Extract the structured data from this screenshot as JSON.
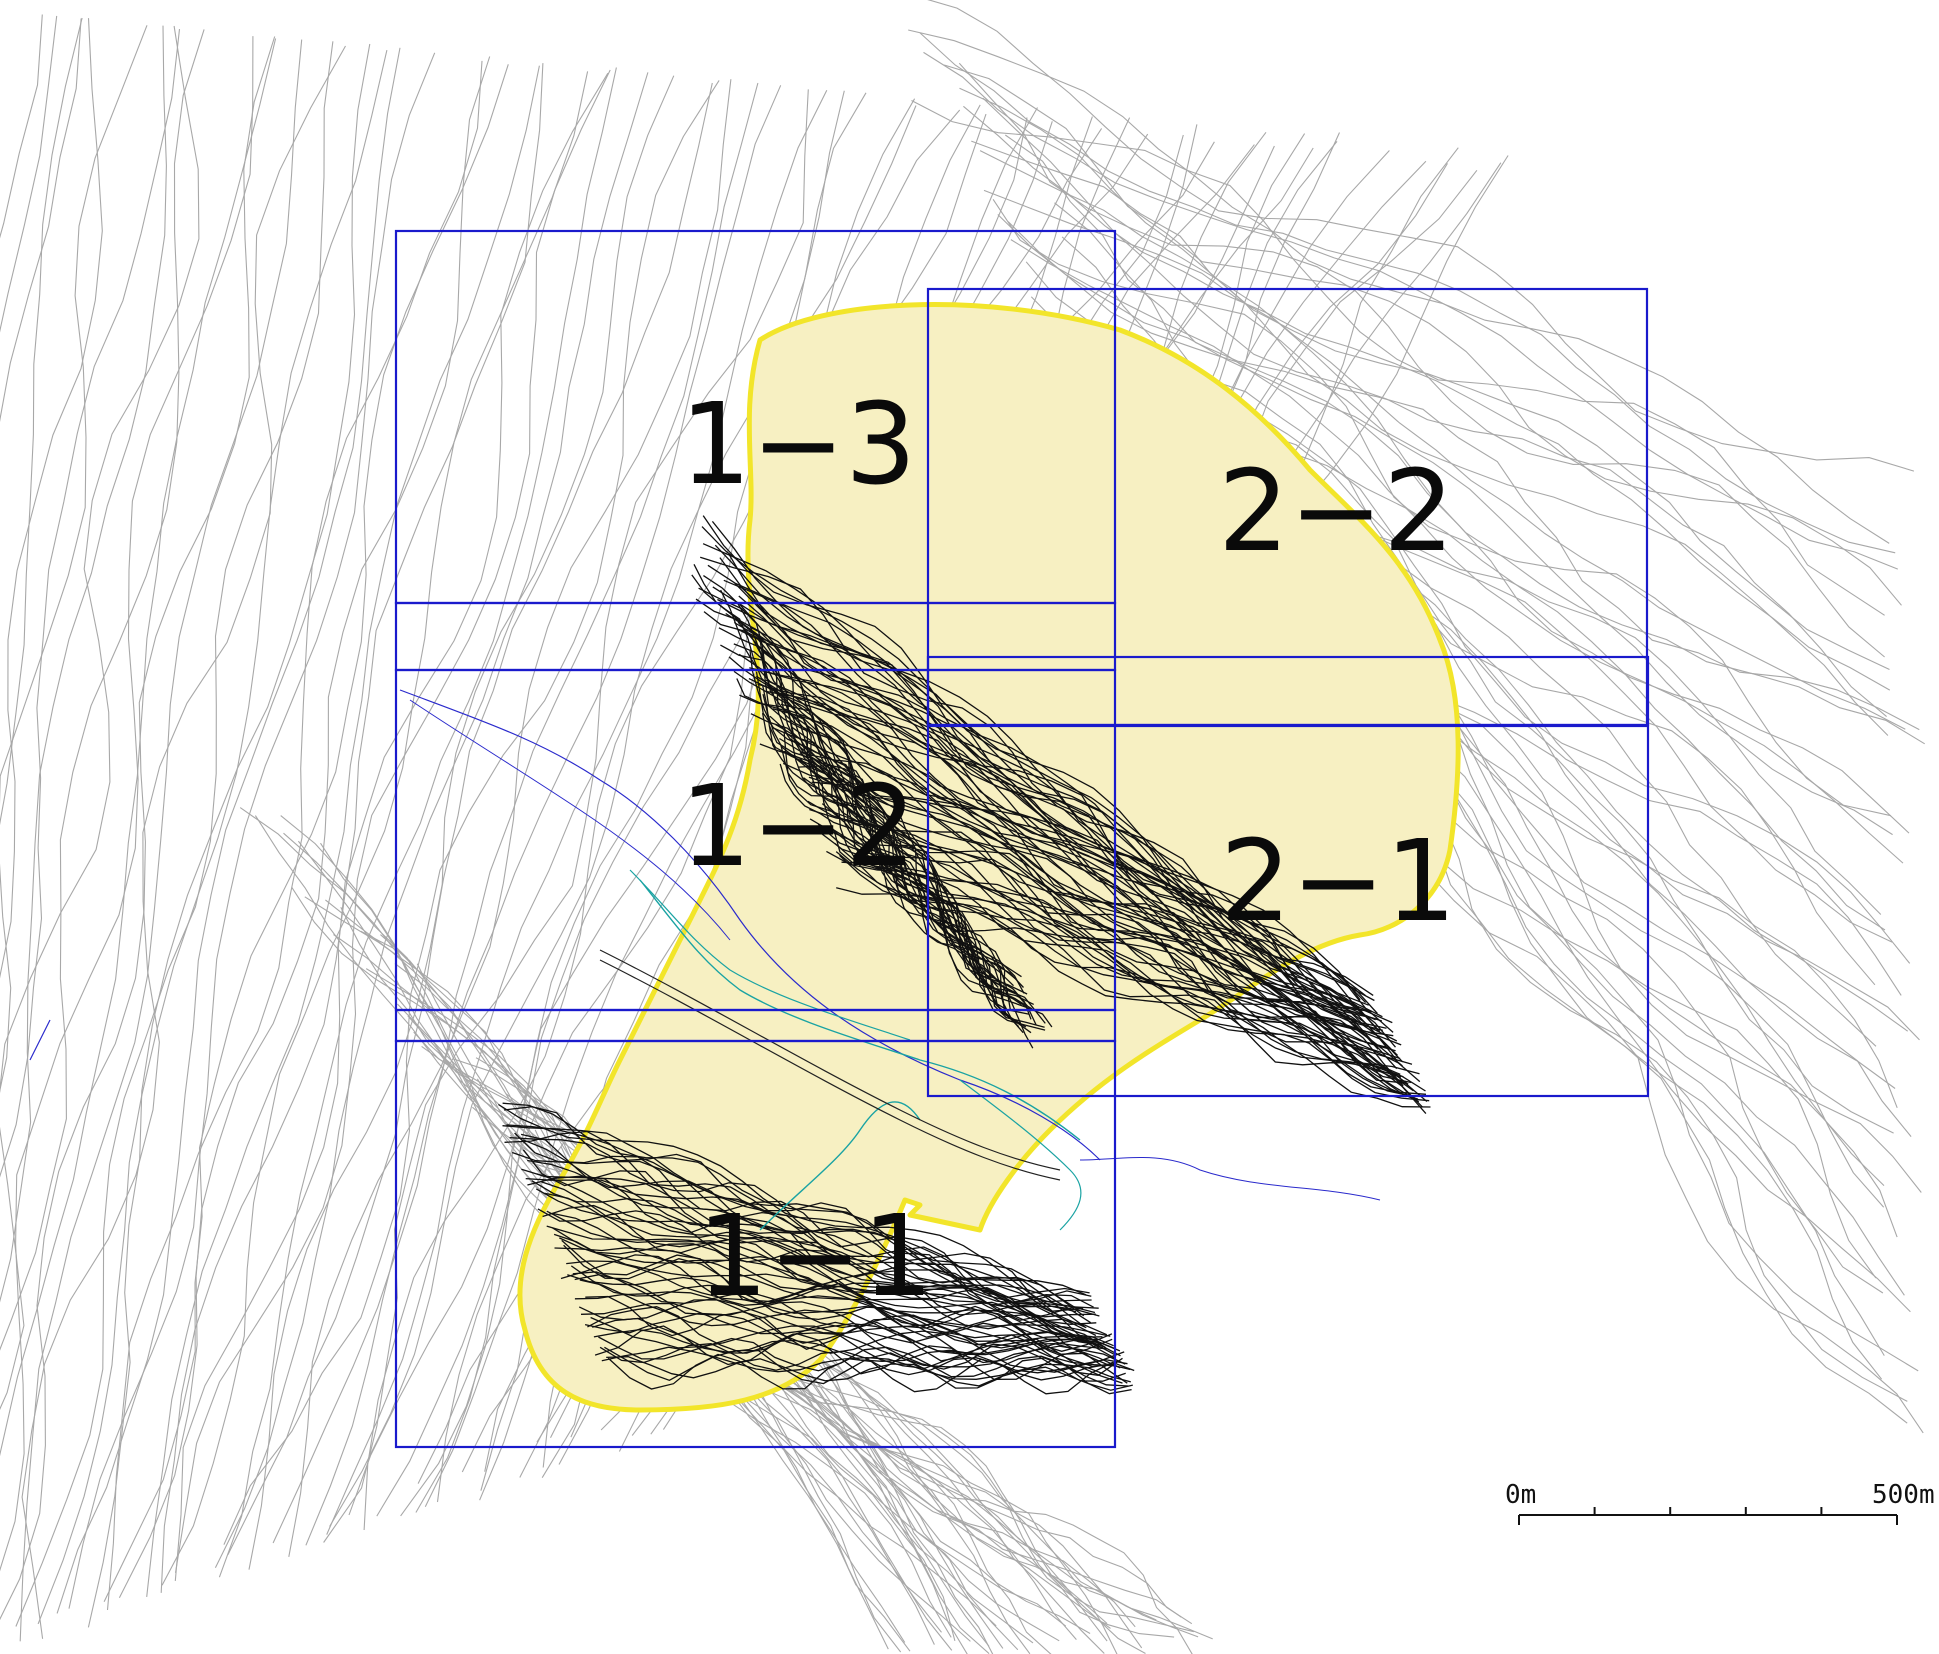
{
  "map": {
    "sheets": [
      {
        "id": "1-3",
        "label": "1−3"
      },
      {
        "id": "2-2",
        "label": "2−2"
      },
      {
        "id": "1-2",
        "label": "1−2"
      },
      {
        "id": "2-1",
        "label": "2−1"
      },
      {
        "id": "1-1",
        "label": "1−1"
      }
    ],
    "colors": {
      "sheet_border": "#1a1acc",
      "survey_area_fill": "#f7f0c2",
      "survey_area_outline": "#f2e52a",
      "contour": "#9a9a9a",
      "detailed_contour": "#111111",
      "river": "#1aa3a3",
      "stream": "#2a2acc"
    }
  },
  "scale_bar": {
    "start_label": "0m",
    "end_label": "500m",
    "divisions": 5
  }
}
